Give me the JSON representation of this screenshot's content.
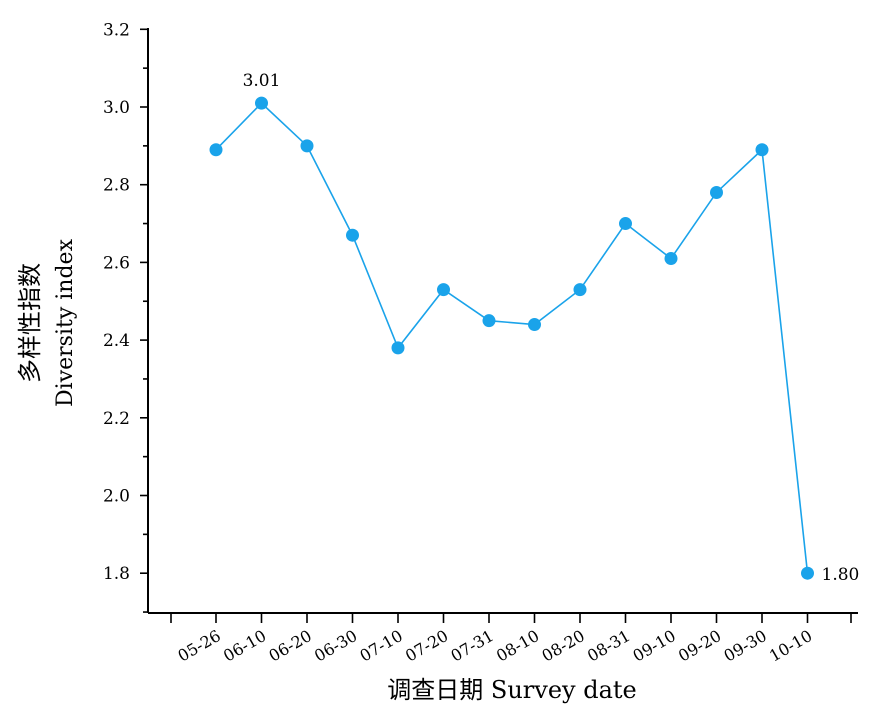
{
  "chart_data": {
    "type": "line",
    "categories": [
      "05-26",
      "06-10",
      "06-20",
      "06-30",
      "07-10",
      "07-20",
      "07-31",
      "08-10",
      "08-20",
      "08-31",
      "09-10",
      "09-20",
      "09-30",
      "10-10"
    ],
    "values": [
      2.89,
      3.01,
      2.9,
      2.67,
      2.38,
      2.53,
      2.45,
      2.44,
      2.53,
      2.7,
      2.61,
      2.78,
      2.89,
      1.8
    ],
    "ylabel_line1": "多样性指数",
    "ylabel_line2": "Diversity index",
    "xlabel": "调查日期  Survey date",
    "ylim": [
      1.7,
      3.2
    ],
    "yticks": [
      1.8,
      2.0,
      2.2,
      2.4,
      2.6,
      2.8,
      3.0,
      3.2
    ],
    "ytick_labels": [
      "1.8",
      "2.0",
      "2.2",
      "2.4",
      "2.6",
      "2.8",
      "3.0",
      "3.2"
    ],
    "annotations": [
      {
        "category": "06-10",
        "text": "3.01"
      },
      {
        "category": "10-10",
        "text": "1.80"
      }
    ],
    "grid": false,
    "colors": {
      "series": "#1aa3ea",
      "axis": "#000000"
    }
  }
}
